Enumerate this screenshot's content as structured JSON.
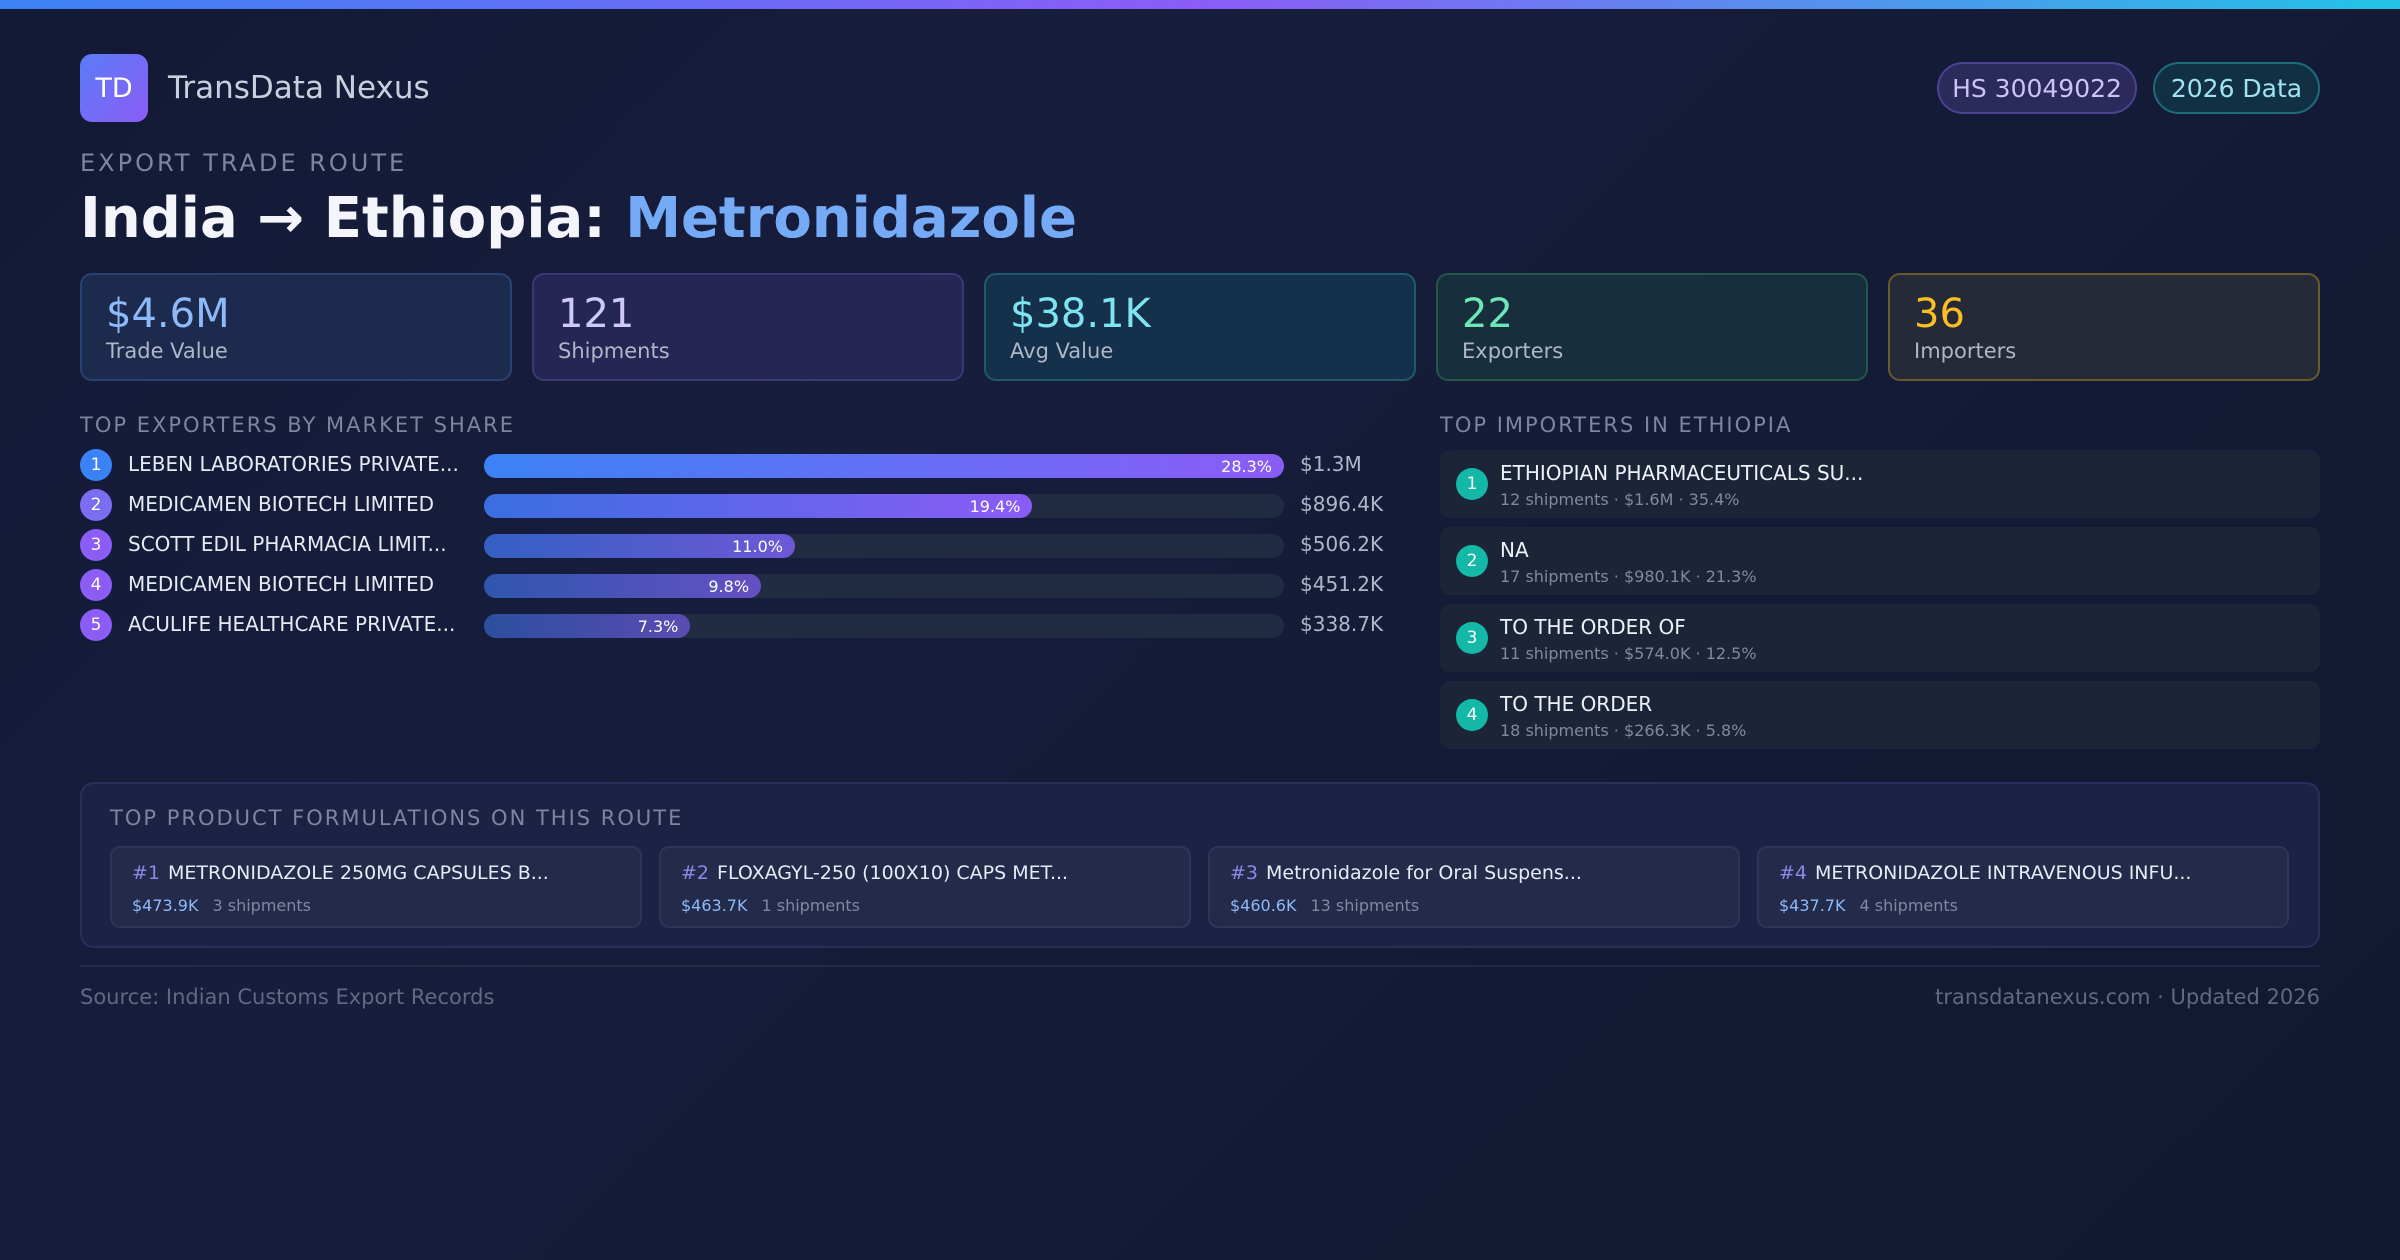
{
  "brand": {
    "logo_text": "TD",
    "name": "TransData Nexus"
  },
  "badges": {
    "hs_code": "HS 30049022",
    "year": "2026 Data"
  },
  "route": {
    "eyebrow": "EXPORT TRADE ROUTE",
    "title_prefix": "India → Ethiopia: ",
    "title_product": "Metronidazole"
  },
  "stats": [
    {
      "value": "$4.6M",
      "label": "Trade Value",
      "color": "#8fbaf9"
    },
    {
      "value": "121",
      "label": "Shipments",
      "color": "#cfc9f5"
    },
    {
      "value": "$38.1K",
      "label": "Avg Value",
      "color": "#7de4f2"
    },
    {
      "value": "22",
      "label": "Exporters",
      "color": "#6ee7b7"
    },
    {
      "value": "36",
      "label": "Importers",
      "color": "#fbbf24"
    }
  ],
  "exporters": {
    "heading": "TOP EXPORTERS BY MARKET SHARE",
    "items": [
      {
        "rank": "1",
        "name": "LEBEN LABORATORIES PRIVATE...",
        "share": 28.3,
        "share_label": "28.3%",
        "value": "$1.3M"
      },
      {
        "rank": "2",
        "name": "MEDICAMEN BIOTECH LIMITED",
        "share": 19.4,
        "share_label": "19.4%",
        "value": "$896.4K"
      },
      {
        "rank": "3",
        "name": "SCOTT EDIL PHARMACIA LIMIT...",
        "share": 11.0,
        "share_label": "11.0%",
        "value": "$506.2K"
      },
      {
        "rank": "4",
        "name": "MEDICAMEN BIOTECH LIMITED",
        "share": 9.8,
        "share_label": "9.8%",
        "value": "$451.2K"
      },
      {
        "rank": "5",
        "name": "ACULIFE HEALTHCARE PRIVATE...",
        "share": 7.3,
        "share_label": "7.3%",
        "value": "$338.7K"
      }
    ]
  },
  "importers": {
    "heading": "TOP IMPORTERS IN ETHIOPIA",
    "items": [
      {
        "rank": "1",
        "name": "ETHIOPIAN PHARMACEUTICALS SU...",
        "meta": "12 shipments · $1.6M · 35.4%"
      },
      {
        "rank": "2",
        "name": "NA",
        "meta": "17 shipments · $980.1K · 21.3%"
      },
      {
        "rank": "3",
        "name": "TO THE ORDER OF",
        "meta": "11 shipments · $574.0K · 12.5%"
      },
      {
        "rank": "4",
        "name": "TO THE ORDER",
        "meta": "18 shipments · $266.3K · 5.8%"
      }
    ]
  },
  "formulations": {
    "heading": "TOP PRODUCT FORMULATIONS ON THIS ROUTE",
    "items": [
      {
        "num": "#1",
        "name": "METRONIDAZOLE 250MG CAPSULES B...",
        "value": "$473.9K",
        "shipments": "3 shipments"
      },
      {
        "num": "#2",
        "name": "FLOXAGYL-250 (100X10) CAPS MET...",
        "value": "$463.7K",
        "shipments": "1 shipments"
      },
      {
        "num": "#3",
        "name": "Metronidazole for Oral Suspens...",
        "value": "$460.6K",
        "shipments": "13 shipments"
      },
      {
        "num": "#4",
        "name": "METRONIDAZOLE INTRAVENOUS INFU...",
        "value": "$437.7K",
        "shipments": "4 shipments"
      }
    ]
  },
  "footer": {
    "source": "Source: Indian Customs Export Records",
    "site": "transdatanexus.com · Updated 2026"
  }
}
